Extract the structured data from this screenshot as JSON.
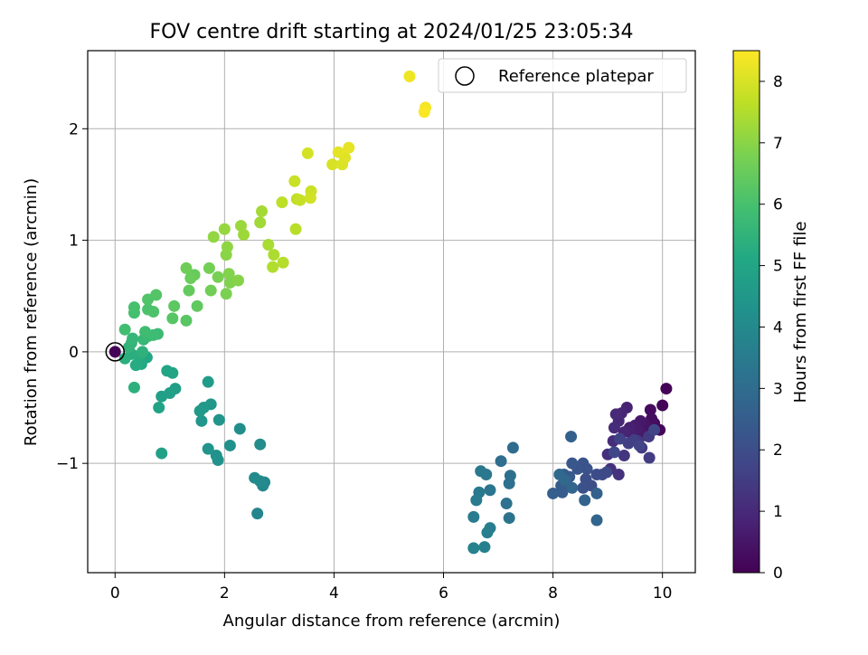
{
  "chart_data": {
    "type": "scatter",
    "title": "FOV centre drift starting at 2024/01/25 23:05:34",
    "xlabel": "Angular distance from reference (arcmin)",
    "ylabel": "Rotation from reference (arcmin)",
    "xlim": [
      -0.5,
      10.6
    ],
    "ylim": [
      -1.98,
      2.7
    ],
    "x_ticks": [
      0,
      2,
      4,
      6,
      8,
      10
    ],
    "y_ticks": [
      -1,
      0,
      1,
      2
    ],
    "x_tick_labels": [
      "0",
      "2",
      "4",
      "6",
      "8",
      "10"
    ],
    "y_tick_labels": [
      "−1",
      "0",
      "1",
      "2"
    ],
    "grid": true,
    "legend": {
      "position": "top-right",
      "entries": [
        "Reference platepar"
      ]
    },
    "colorbar": {
      "label": "Hours from first FF file",
      "colormap": "viridis",
      "range": [
        0,
        8.5
      ],
      "ticks": [
        0,
        1,
        2,
        3,
        4,
        5,
        6,
        7,
        8
      ],
      "tick_labels": [
        "0",
        "1",
        "2",
        "3",
        "4",
        "5",
        "6",
        "7",
        "8"
      ]
    },
    "reference_point": {
      "x": 0,
      "y": 0,
      "value": 0.05
    },
    "points": [
      [
        10.07,
        -0.33,
        0.05
      ],
      [
        10.0,
        -0.48,
        0.1
      ],
      [
        9.95,
        -0.7,
        0.15
      ],
      [
        9.85,
        -0.64,
        0.2
      ],
      [
        9.78,
        -0.52,
        0.25
      ],
      [
        9.8,
        -0.6,
        0.3
      ],
      [
        9.75,
        -0.68,
        0.35
      ],
      [
        9.7,
        -0.75,
        0.4
      ],
      [
        9.68,
        -0.65,
        0.45
      ],
      [
        9.62,
        -0.72,
        0.5
      ],
      [
        9.6,
        -0.62,
        0.55
      ],
      [
        9.55,
        -0.7,
        0.6
      ],
      [
        9.5,
        -0.66,
        0.65
      ],
      [
        9.45,
        -0.74,
        0.7
      ],
      [
        9.4,
        -0.68,
        0.75
      ],
      [
        9.35,
        -0.5,
        0.8
      ],
      [
        9.3,
        -0.72,
        0.85
      ],
      [
        9.25,
        -0.55,
        0.9
      ],
      [
        9.2,
        -0.62,
        0.95
      ],
      [
        9.15,
        -0.56,
        1.0
      ],
      [
        9.12,
        -0.68,
        1.05
      ],
      [
        9.1,
        -0.8,
        1.1
      ],
      [
        9.0,
        -0.92,
        1.15
      ],
      [
        9.05,
        -1.05,
        1.2
      ],
      [
        9.2,
        -1.1,
        1.25
      ],
      [
        9.3,
        -0.93,
        1.3
      ],
      [
        9.55,
        -0.8,
        1.35
      ],
      [
        9.62,
        -0.86,
        1.4
      ],
      [
        9.75,
        -0.76,
        1.45
      ],
      [
        9.76,
        -0.95,
        1.5
      ],
      [
        9.48,
        -0.79,
        1.55
      ],
      [
        9.38,
        -0.82,
        1.6
      ],
      [
        9.22,
        -0.78,
        1.65
      ],
      [
        9.58,
        -0.84,
        1.7
      ],
      [
        9.85,
        -0.7,
        1.75
      ],
      [
        9.12,
        -0.9,
        1.8
      ],
      [
        8.98,
        -1.08,
        1.85
      ],
      [
        8.9,
        -1.1,
        1.9
      ],
      [
        8.8,
        -1.1,
        1.95
      ],
      [
        8.7,
        -1.2,
        2.0
      ],
      [
        8.6,
        -1.14,
        2.05
      ],
      [
        8.55,
        -1.22,
        2.1
      ],
      [
        8.62,
        -1.05,
        2.15
      ],
      [
        8.55,
        -1.0,
        2.2
      ],
      [
        8.45,
        -1.05,
        2.25
      ],
      [
        8.35,
        -1.0,
        2.3
      ],
      [
        8.3,
        -1.12,
        2.35
      ],
      [
        8.2,
        -1.1,
        2.4
      ],
      [
        8.15,
        -1.2,
        2.45
      ],
      [
        8.17,
        -1.26,
        2.5
      ],
      [
        8.0,
        -1.27,
        2.55
      ],
      [
        8.33,
        -0.76,
        2.6
      ],
      [
        8.8,
        -1.27,
        2.65
      ],
      [
        8.58,
        -1.33,
        2.7
      ],
      [
        8.8,
        -1.51,
        2.75
      ],
      [
        8.35,
        -1.22,
        2.8
      ],
      [
        8.22,
        -1.15,
        2.85
      ],
      [
        8.12,
        -1.1,
        2.9
      ],
      [
        7.27,
        -0.86,
        3.0
      ],
      [
        7.05,
        -0.98,
        3.05
      ],
      [
        7.22,
        -1.11,
        3.1
      ],
      [
        7.2,
        -1.18,
        3.15
      ],
      [
        7.15,
        -1.36,
        3.2
      ],
      [
        7.2,
        -1.49,
        3.25
      ],
      [
        6.85,
        -1.24,
        3.3
      ],
      [
        6.78,
        -1.1,
        3.35
      ],
      [
        6.68,
        -1.07,
        3.4
      ],
      [
        6.65,
        -1.26,
        3.45
      ],
      [
        6.6,
        -1.33,
        3.5
      ],
      [
        6.55,
        -1.48,
        3.55
      ],
      [
        6.85,
        -1.58,
        3.6
      ],
      [
        6.8,
        -1.62,
        3.65
      ],
      [
        6.75,
        -1.75,
        3.7
      ],
      [
        6.55,
        -1.76,
        3.75
      ],
      [
        2.6,
        -1.45,
        3.85
      ],
      [
        2.7,
        -1.2,
        3.9
      ],
      [
        2.73,
        -1.17,
        3.95
      ],
      [
        2.65,
        -1.16,
        4.0
      ],
      [
        2.55,
        -1.13,
        4.05
      ],
      [
        2.65,
        -0.83,
        4.1
      ],
      [
        2.28,
        -0.69,
        4.15
      ],
      [
        2.1,
        -0.84,
        4.2
      ],
      [
        1.85,
        -0.93,
        4.25
      ],
      [
        1.88,
        -0.97,
        4.3
      ],
      [
        1.7,
        -0.87,
        4.35
      ],
      [
        1.9,
        -0.61,
        4.4
      ],
      [
        1.58,
        -0.62,
        4.45
      ],
      [
        1.75,
        -0.47,
        4.5
      ],
      [
        1.62,
        -0.5,
        4.55
      ],
      [
        1.55,
        -0.53,
        4.6
      ],
      [
        1.7,
        -0.27,
        4.65
      ],
      [
        1.1,
        -0.33,
        4.7
      ],
      [
        1.0,
        -0.37,
        4.75
      ],
      [
        0.85,
        -0.4,
        4.8
      ],
      [
        0.85,
        -0.91,
        4.85
      ],
      [
        0.8,
        -0.5,
        4.9
      ],
      [
        1.05,
        -0.19,
        4.95
      ],
      [
        0.95,
        -0.17,
        5.0
      ],
      [
        0.58,
        -0.05,
        5.05
      ],
      [
        0.48,
        -0.11,
        5.1
      ],
      [
        0.45,
        -0.09,
        5.15
      ],
      [
        0.38,
        -0.12,
        5.2
      ],
      [
        0.45,
        -0.03,
        5.25
      ],
      [
        0.3,
        -0.02,
        5.3
      ],
      [
        0.18,
        -0.06,
        5.35
      ],
      [
        0.35,
        -0.32,
        5.4
      ],
      [
        0.5,
        0.0,
        5.45
      ],
      [
        0.25,
        0.04,
        5.5
      ],
      [
        0.3,
        0.08,
        5.55
      ],
      [
        0.32,
        0.12,
        5.6
      ],
      [
        0.52,
        0.11,
        5.65
      ],
      [
        0.6,
        0.14,
        5.7
      ],
      [
        0.78,
        0.16,
        5.75
      ],
      [
        0.7,
        0.15,
        5.8
      ],
      [
        0.55,
        0.18,
        5.85
      ],
      [
        0.18,
        0.2,
        5.9
      ],
      [
        0.35,
        0.35,
        5.95
      ],
      [
        0.35,
        0.4,
        6.0
      ],
      [
        0.6,
        0.38,
        6.05
      ],
      [
        0.7,
        0.36,
        6.1
      ],
      [
        0.6,
        0.47,
        6.15
      ],
      [
        0.75,
        0.51,
        6.2
      ],
      [
        1.05,
        0.3,
        6.25
      ],
      [
        1.3,
        0.28,
        6.3
      ],
      [
        1.08,
        0.41,
        6.35
      ],
      [
        1.5,
        0.41,
        6.4
      ],
      [
        1.35,
        0.55,
        6.45
      ],
      [
        1.45,
        0.69,
        6.5
      ],
      [
        1.38,
        0.66,
        6.55
      ],
      [
        1.3,
        0.75,
        6.6
      ],
      [
        1.75,
        0.55,
        6.65
      ],
      [
        1.72,
        0.75,
        6.7
      ],
      [
        1.88,
        0.67,
        6.75
      ],
      [
        2.03,
        0.52,
        6.8
      ],
      [
        2.1,
        0.62,
        6.85
      ],
      [
        2.08,
        0.7,
        6.9
      ],
      [
        2.25,
        0.64,
        6.95
      ],
      [
        2.03,
        0.87,
        7.0
      ],
      [
        2.05,
        0.94,
        7.05
      ],
      [
        1.8,
        1.03,
        7.1
      ],
      [
        2.0,
        1.1,
        7.15
      ],
      [
        2.3,
        1.13,
        7.2
      ],
      [
        2.35,
        1.05,
        7.25
      ],
      [
        2.65,
        1.16,
        7.3
      ],
      [
        2.68,
        1.26,
        7.35
      ],
      [
        2.8,
        0.96,
        7.4
      ],
      [
        2.9,
        0.87,
        7.45
      ],
      [
        2.88,
        0.76,
        7.5
      ],
      [
        3.07,
        0.8,
        7.55
      ],
      [
        3.3,
        1.1,
        7.6
      ],
      [
        3.05,
        1.34,
        7.65
      ],
      [
        3.32,
        1.37,
        7.7
      ],
      [
        3.38,
        1.36,
        7.75
      ],
      [
        3.28,
        1.53,
        7.8
      ],
      [
        3.58,
        1.44,
        7.85
      ],
      [
        3.57,
        1.38,
        7.9
      ],
      [
        3.52,
        1.78,
        7.95
      ],
      [
        3.97,
        1.68,
        8.0
      ],
      [
        4.15,
        1.68,
        8.05
      ],
      [
        4.2,
        1.74,
        8.1
      ],
      [
        4.08,
        1.79,
        8.15
      ],
      [
        4.27,
        1.83,
        8.2
      ],
      [
        5.38,
        2.47,
        8.3
      ],
      [
        5.67,
        2.19,
        8.4
      ],
      [
        5.65,
        2.15,
        8.45
      ]
    ]
  }
}
